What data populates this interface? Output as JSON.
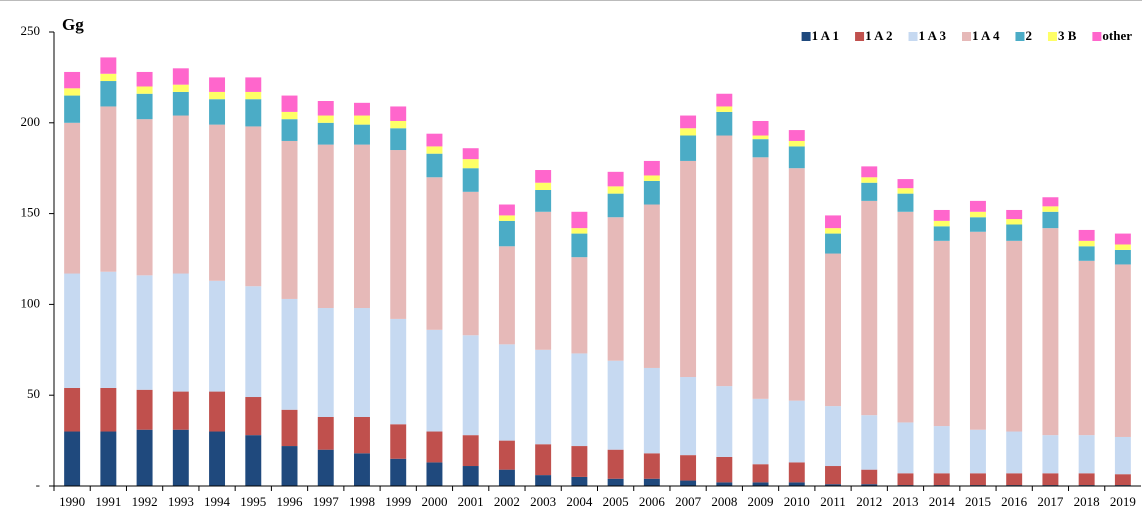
{
  "chart_data": {
    "type": "bar",
    "stacked": true,
    "ylabel": "Gg",
    "categories": [
      "1990",
      "1991",
      "1992",
      "1993",
      "1994",
      "1995",
      "1996",
      "1997",
      "1998",
      "1999",
      "2000",
      "2001",
      "2002",
      "2003",
      "2004",
      "2005",
      "2006",
      "2007",
      "2008",
      "2009",
      "2010",
      "2011",
      "2012",
      "2013",
      "2014",
      "2015",
      "2016",
      "2017",
      "2018",
      "2019"
    ],
    "series": [
      {
        "name": "1 A 1",
        "color": "#1f497d",
        "values": [
          30,
          30,
          31,
          31,
          30,
          28,
          22,
          20,
          18,
          15,
          13,
          11,
          9,
          6,
          5,
          4,
          4,
          3,
          2,
          2,
          2,
          1,
          1,
          0.5,
          0.5,
          0.5,
          0.5,
          0.5,
          0.5,
          0.5
        ]
      },
      {
        "name": "1 A 2",
        "color": "#c0504d",
        "values": [
          24,
          24,
          22,
          21,
          22,
          21,
          20,
          18,
          20,
          19,
          17,
          17,
          16,
          17,
          17,
          16,
          14,
          14,
          14,
          10,
          11,
          10,
          8,
          6.5,
          6.5,
          6.5,
          6.5,
          6.5,
          6.5,
          6
        ]
      },
      {
        "name": "1 A 3",
        "color": "#c6d9f1",
        "values": [
          63,
          64,
          63,
          65,
          61,
          61,
          61,
          60,
          60,
          58,
          56,
          55,
          53,
          52,
          51,
          49,
          47,
          43,
          39,
          36,
          34,
          33,
          30,
          28,
          26,
          24,
          23,
          21,
          21,
          20.5
        ]
      },
      {
        "name": "1 A 4",
        "color": "#e6b9b8",
        "values": [
          83,
          91,
          86,
          87,
          86,
          88,
          87,
          90,
          90,
          93,
          84,
          79,
          54,
          76,
          53,
          79,
          90,
          119,
          138,
          133,
          128,
          84,
          118,
          116,
          102,
          109,
          105,
          114,
          96,
          95
        ]
      },
      {
        "name": "2",
        "color": "#4bacc6",
        "values": [
          15,
          14,
          14,
          13,
          14,
          15,
          12,
          12,
          11,
          12,
          13,
          13,
          14,
          12,
          13,
          13,
          13,
          14,
          13,
          10,
          12,
          11,
          10,
          10,
          8,
          8,
          9,
          9,
          8,
          8
        ]
      },
      {
        "name": "3 B",
        "color": "#ffff66",
        "values": [
          4,
          4,
          4,
          4,
          4,
          4,
          4,
          4,
          5,
          4,
          4,
          5,
          3,
          4,
          3,
          4,
          3,
          4,
          3,
          2,
          3,
          3,
          3,
          3,
          3,
          3,
          3,
          3,
          3,
          3
        ]
      },
      {
        "name": "other",
        "color": "#ff66cc",
        "values": [
          9,
          9,
          8,
          9,
          8,
          8,
          9,
          8,
          7,
          8,
          7,
          6,
          6,
          7,
          9,
          8,
          8,
          7,
          7,
          8,
          6,
          7,
          6,
          5,
          6,
          6,
          5,
          5,
          6,
          6
        ]
      }
    ],
    "ylim": [
      0,
      250
    ],
    "yticks": [
      {
        "value": 0,
        "label": "-"
      },
      50,
      100,
      150,
      200,
      250
    ],
    "legend": "top-right"
  }
}
